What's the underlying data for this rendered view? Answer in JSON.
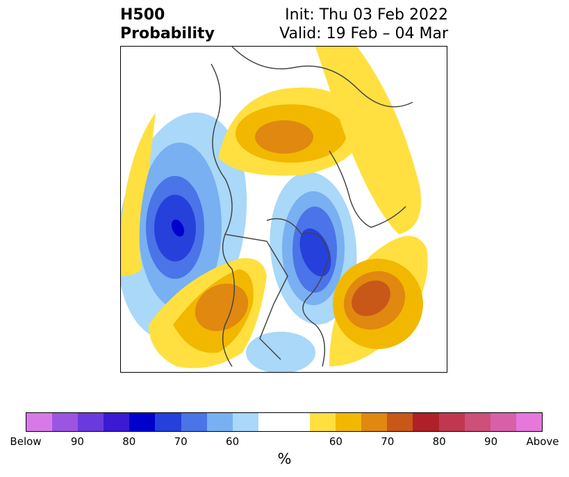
{
  "title": {
    "left_line1": "H500",
    "left_line2": "Probability",
    "init": "Init: Thu 03 Feb 2022",
    "valid": "Valid: 19 Feb – 04 Mar"
  },
  "colorbar": {
    "colors": [
      "#d77ae8",
      "#9c55e0",
      "#6b3adc",
      "#3c1ad2",
      "#0000cc",
      "#2640dc",
      "#4b74e8",
      "#78b0f2",
      "#a9d8f8",
      "#ffffff",
      "#ffffff",
      "#ffe040",
      "#f2b800",
      "#e08810",
      "#c85818",
      "#b02028",
      "#c03850",
      "#cc5078",
      "#d860a8",
      "#e678dc"
    ],
    "tick_labels": [
      "Below",
      "90",
      "80",
      "70",
      "60",
      "60",
      "70",
      "80",
      "90",
      "Above"
    ],
    "unit": "%"
  },
  "map_colors": {
    "blue_light": "#a9d8f8",
    "blue_mid1": "#78b0f2",
    "blue_mid2": "#4b74e8",
    "blue_dark": "#2640dc",
    "blue_core": "#0000cc",
    "yellow": "#ffe040",
    "gold": "#f2b800",
    "orange": "#e08810",
    "orange_dark": "#c85818"
  }
}
